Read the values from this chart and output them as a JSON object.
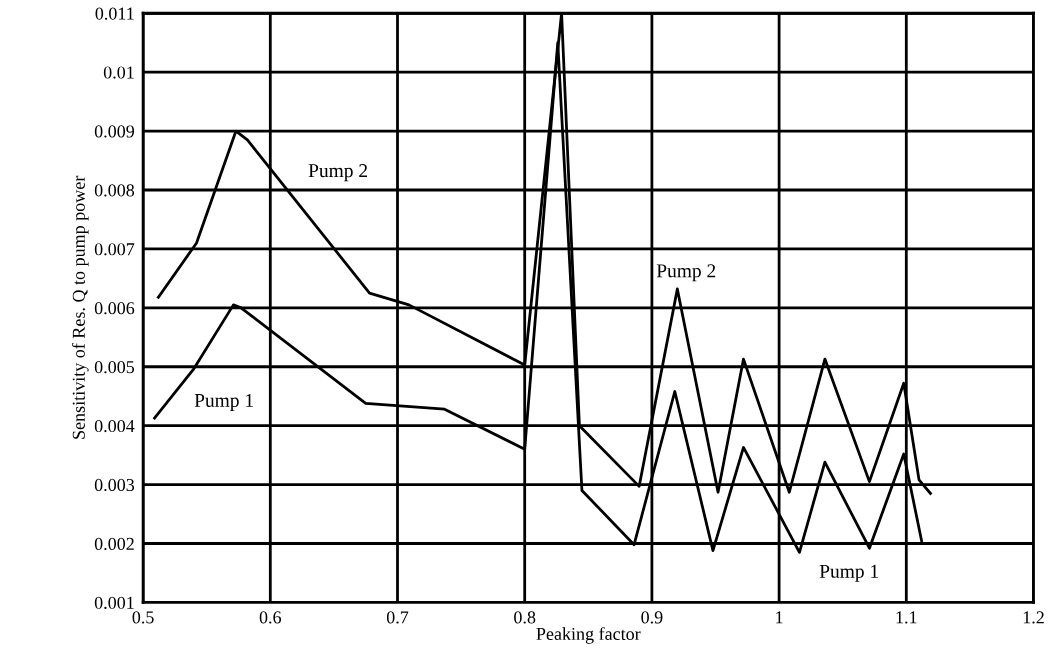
{
  "chart_data": {
    "type": "line",
    "xlabel": "Peaking factor",
    "ylabel": "Sensitivity of Res. Q to pump power",
    "xlim": [
      0.5,
      1.2
    ],
    "xticks": [
      0.5,
      0.6,
      0.7,
      0.8,
      0.9,
      1,
      1.1,
      1.2
    ],
    "ylim": [
      0.001,
      0.011
    ],
    "yticks": [
      0.001,
      0.002,
      0.003,
      0.004,
      0.005,
      0.006,
      0.007,
      0.008,
      0.009,
      0.01,
      0.011
    ],
    "grid": true,
    "marker": "none",
    "line_style": "solid",
    "series": [
      {
        "color": "#000000",
        "x": [
          0.512,
          0.542,
          0.573,
          0.582,
          0.678,
          0.709,
          0.8,
          0.829,
          0.843,
          0.89,
          0.92,
          0.952,
          0.972,
          1.008,
          1.036,
          1.071,
          1.098,
          1.11,
          1.119
        ],
        "values": [
          0.00618,
          0.0071,
          0.009,
          0.00885,
          0.00625,
          0.00605,
          0.00503,
          0.011,
          0.004,
          0.00297,
          0.00632,
          0.00287,
          0.00513,
          0.00287,
          0.00513,
          0.00305,
          0.00472,
          0.00308,
          0.00285
        ]
      },
      {
        "color": "#000000",
        "x": [
          0.509,
          0.54,
          0.571,
          0.577,
          0.675,
          0.737,
          0.8,
          0.826,
          0.845,
          0.886,
          0.918,
          0.948,
          0.972,
          1.016,
          1.036,
          1.071,
          1.098,
          1.112
        ],
        "values": [
          0.00413,
          0.00497,
          0.00605,
          0.006,
          0.00438,
          0.00428,
          0.0036,
          0.0105,
          0.0029,
          0.00198,
          0.00458,
          0.00188,
          0.00363,
          0.00185,
          0.00338,
          0.00192,
          0.00352,
          0.00205
        ]
      }
    ],
    "annotations": [
      "Pump 2",
      "Pump 1",
      "Pump 2",
      "Pump 1"
    ]
  }
}
